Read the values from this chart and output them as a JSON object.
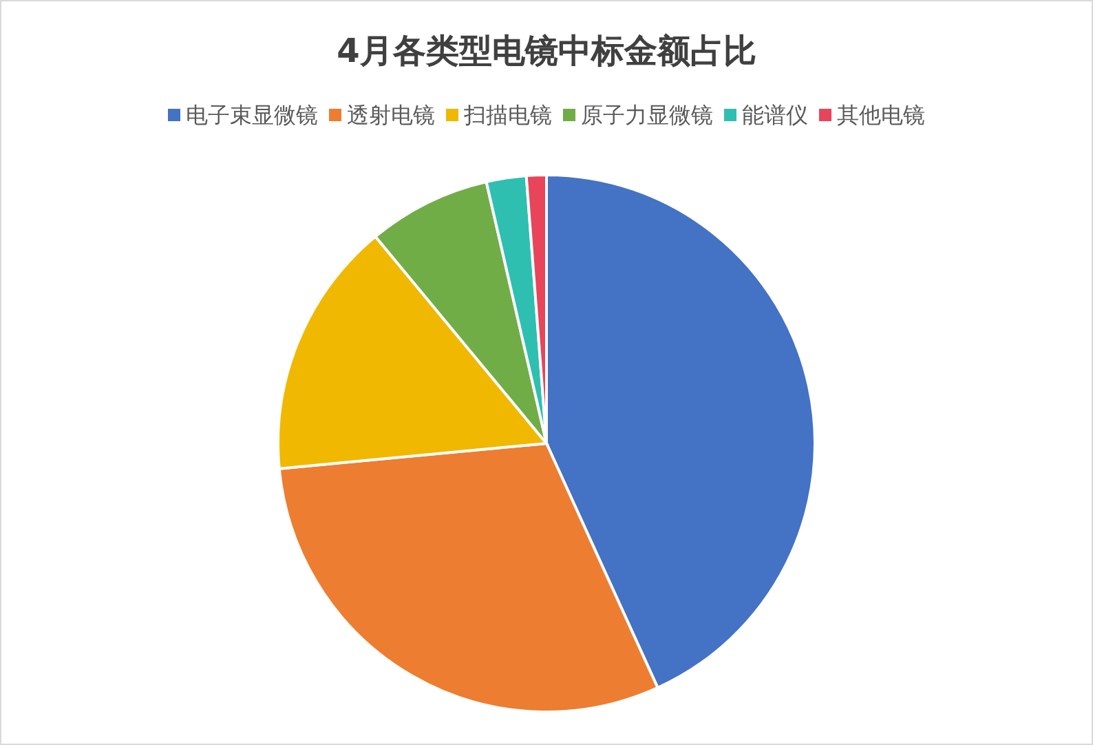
{
  "chart_data": {
    "type": "pie",
    "title": "4月各类型电镜中标金额占比",
    "legend": "top",
    "categories": [
      "电子束显微镜",
      "透射电镜",
      "扫描电镜",
      "原子力显微镜",
      "能谱仪",
      "其他电镜"
    ],
    "values": [
      43.2,
      30.3,
      15.5,
      7.4,
      2.4,
      1.2
    ],
    "colors": [
      "#4472c4",
      "#ed7d31",
      "#f0b800",
      "#70ad47",
      "#2fbfb0",
      "#e8455a"
    ]
  }
}
